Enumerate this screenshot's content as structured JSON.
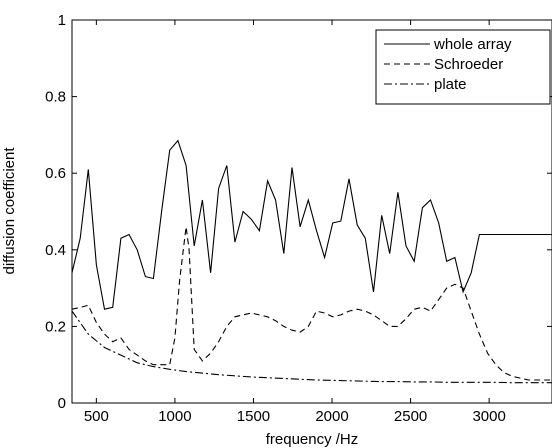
{
  "chart_data": {
    "type": "line",
    "title": "",
    "xlabel": "frequency /Hz",
    "ylabel": "diffusion coefficient",
    "xlim": [
      345,
      3400
    ],
    "ylim": [
      0,
      1
    ],
    "xticks": [
      "500",
      "1000",
      "1500",
      "2000",
      "2500",
      "3000"
    ],
    "yticks": [
      "0",
      "0.2",
      "0.4",
      "0.6",
      "0.8",
      "1"
    ],
    "grid": false,
    "legend_position": "top-right",
    "series": [
      {
        "name": "whole array",
        "style": "solid",
        "color": "#000000",
        "x": [
          345,
          397,
          449,
          500,
          552,
          604,
          656,
          708,
          760,
          812,
          863,
          915,
          967,
          1019,
          1071,
          1123,
          1175,
          1227,
          1278,
          1330,
          1382,
          1434,
          1486,
          1538,
          1590,
          1641,
          1693,
          1745,
          1797,
          1849,
          1901,
          1953,
          2004,
          2056,
          2108,
          2160,
          2212,
          2264,
          2316,
          2367,
          2419,
          2471,
          2523,
          2575,
          2627,
          2679,
          2730,
          2782,
          2834,
          2886,
          2938,
          2990,
          3042,
          3093,
          3145,
          3197,
          3249,
          3301,
          3353,
          3400
        ],
        "values": [
          0.34,
          0.43,
          0.61,
          0.36,
          0.245,
          0.25,
          0.43,
          0.44,
          0.4,
          0.33,
          0.325,
          0.5,
          0.66,
          0.685,
          0.62,
          0.41,
          0.53,
          0.34,
          0.56,
          0.62,
          0.42,
          0.5,
          0.48,
          0.45,
          0.58,
          0.53,
          0.39,
          0.615,
          0.46,
          0.53,
          0.45,
          0.38,
          0.47,
          0.475,
          0.585,
          0.465,
          0.43,
          0.29,
          0.49,
          0.39,
          0.55,
          0.41,
          0.37,
          0.51,
          0.53,
          0.47,
          0.37,
          0.38,
          0.29,
          0.34,
          0.44,
          0.44,
          0.44,
          0.44,
          0.44,
          0.44,
          0.44,
          0.44,
          0.44,
          0.44
        ]
      },
      {
        "name": "Schroeder",
        "style": "dashed",
        "color": "#000000",
        "x": [
          345,
          400,
          449,
          500,
          552,
          604,
          656,
          708,
          760,
          812,
          863,
          915,
          967,
          1000,
          1030,
          1071,
          1090,
          1123,
          1175,
          1227,
          1278,
          1330,
          1382,
          1434,
          1486,
          1538,
          1590,
          1641,
          1693,
          1745,
          1797,
          1849,
          1901,
          1953,
          2004,
          2056,
          2108,
          2160,
          2212,
          2264,
          2316,
          2367,
          2419,
          2471,
          2523,
          2575,
          2627,
          2679,
          2730,
          2782,
          2834,
          2886,
          2938,
          2990,
          3042,
          3093,
          3145,
          3197,
          3249,
          3301,
          3353,
          3400
        ],
        "values": [
          0.245,
          0.25,
          0.255,
          0.21,
          0.18,
          0.16,
          0.17,
          0.14,
          0.125,
          0.11,
          0.1,
          0.1,
          0.1,
          0.17,
          0.32,
          0.46,
          0.4,
          0.14,
          0.11,
          0.13,
          0.16,
          0.2,
          0.225,
          0.23,
          0.235,
          0.23,
          0.225,
          0.215,
          0.2,
          0.19,
          0.185,
          0.2,
          0.24,
          0.235,
          0.225,
          0.23,
          0.24,
          0.245,
          0.24,
          0.23,
          0.215,
          0.2,
          0.2,
          0.22,
          0.245,
          0.25,
          0.24,
          0.27,
          0.3,
          0.31,
          0.3,
          0.24,
          0.18,
          0.13,
          0.1,
          0.08,
          0.07,
          0.065,
          0.06,
          0.06,
          0.06,
          0.06
        ]
      },
      {
        "name": "plate",
        "style": "dashdot",
        "color": "#000000",
        "x": [
          345,
          449,
          552,
          656,
          760,
          863,
          967,
          1071,
          1175,
          1278,
          1382,
          1486,
          1590,
          1693,
          1797,
          1901,
          2004,
          2108,
          2212,
          2316,
          2419,
          2523,
          2627,
          2730,
          2834,
          2938,
          3042,
          3145,
          3249,
          3353,
          3400
        ],
        "values": [
          0.24,
          0.18,
          0.145,
          0.125,
          0.105,
          0.095,
          0.088,
          0.082,
          0.078,
          0.074,
          0.071,
          0.068,
          0.066,
          0.064,
          0.062,
          0.06,
          0.059,
          0.058,
          0.057,
          0.056,
          0.056,
          0.055,
          0.055,
          0.054,
          0.054,
          0.054,
          0.054,
          0.053,
          0.053,
          0.053,
          0.053
        ]
      }
    ]
  }
}
